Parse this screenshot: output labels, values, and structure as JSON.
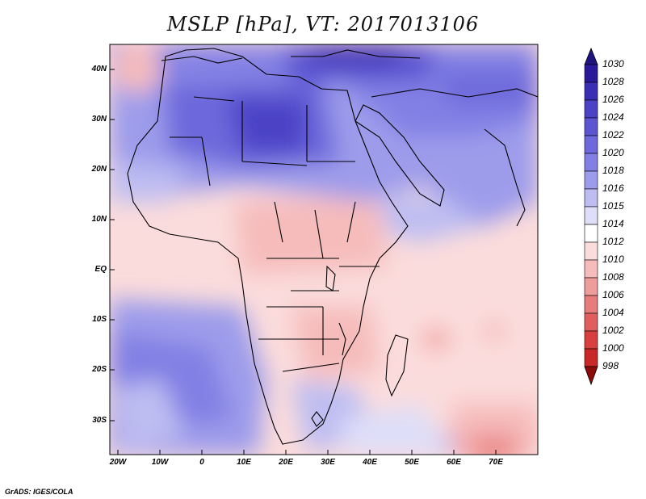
{
  "title": "MSLP [hPa], VT: 2017013106",
  "footer": "GrADS: IGES/COLA",
  "map": {
    "lat_labels": [
      "40N",
      "30N",
      "20N",
      "10N",
      "EQ",
      "10S",
      "20S",
      "30S"
    ],
    "lon_labels": [
      "20W",
      "10W",
      "0",
      "10E",
      "20E",
      "30E",
      "40E",
      "50E",
      "60E",
      "70E"
    ]
  },
  "colorbar": {
    "levels": [
      "1030",
      "1028",
      "1026",
      "1024",
      "1022",
      "1020",
      "1018",
      "1016",
      "1015",
      "1014",
      "1012",
      "1010",
      "1008",
      "1006",
      "1004",
      "1002",
      "1000",
      "998"
    ],
    "colors": [
      "#2a1a9a",
      "#3a2eb4",
      "#4b42c6",
      "#5b55d2",
      "#6d69dc",
      "#8280e4",
      "#9d9ceb",
      "#bdbdf2",
      "#dedef9",
      "#ffffff",
      "#fbdcdc",
      "#f6bcbc",
      "#ef9c9c",
      "#e87c7c",
      "#e05e5e",
      "#d84040",
      "#c82828",
      "#a81010"
    ],
    "top_arrow_color": "#1e1480",
    "bottom_arrow_color": "#8c0a0a"
  }
}
